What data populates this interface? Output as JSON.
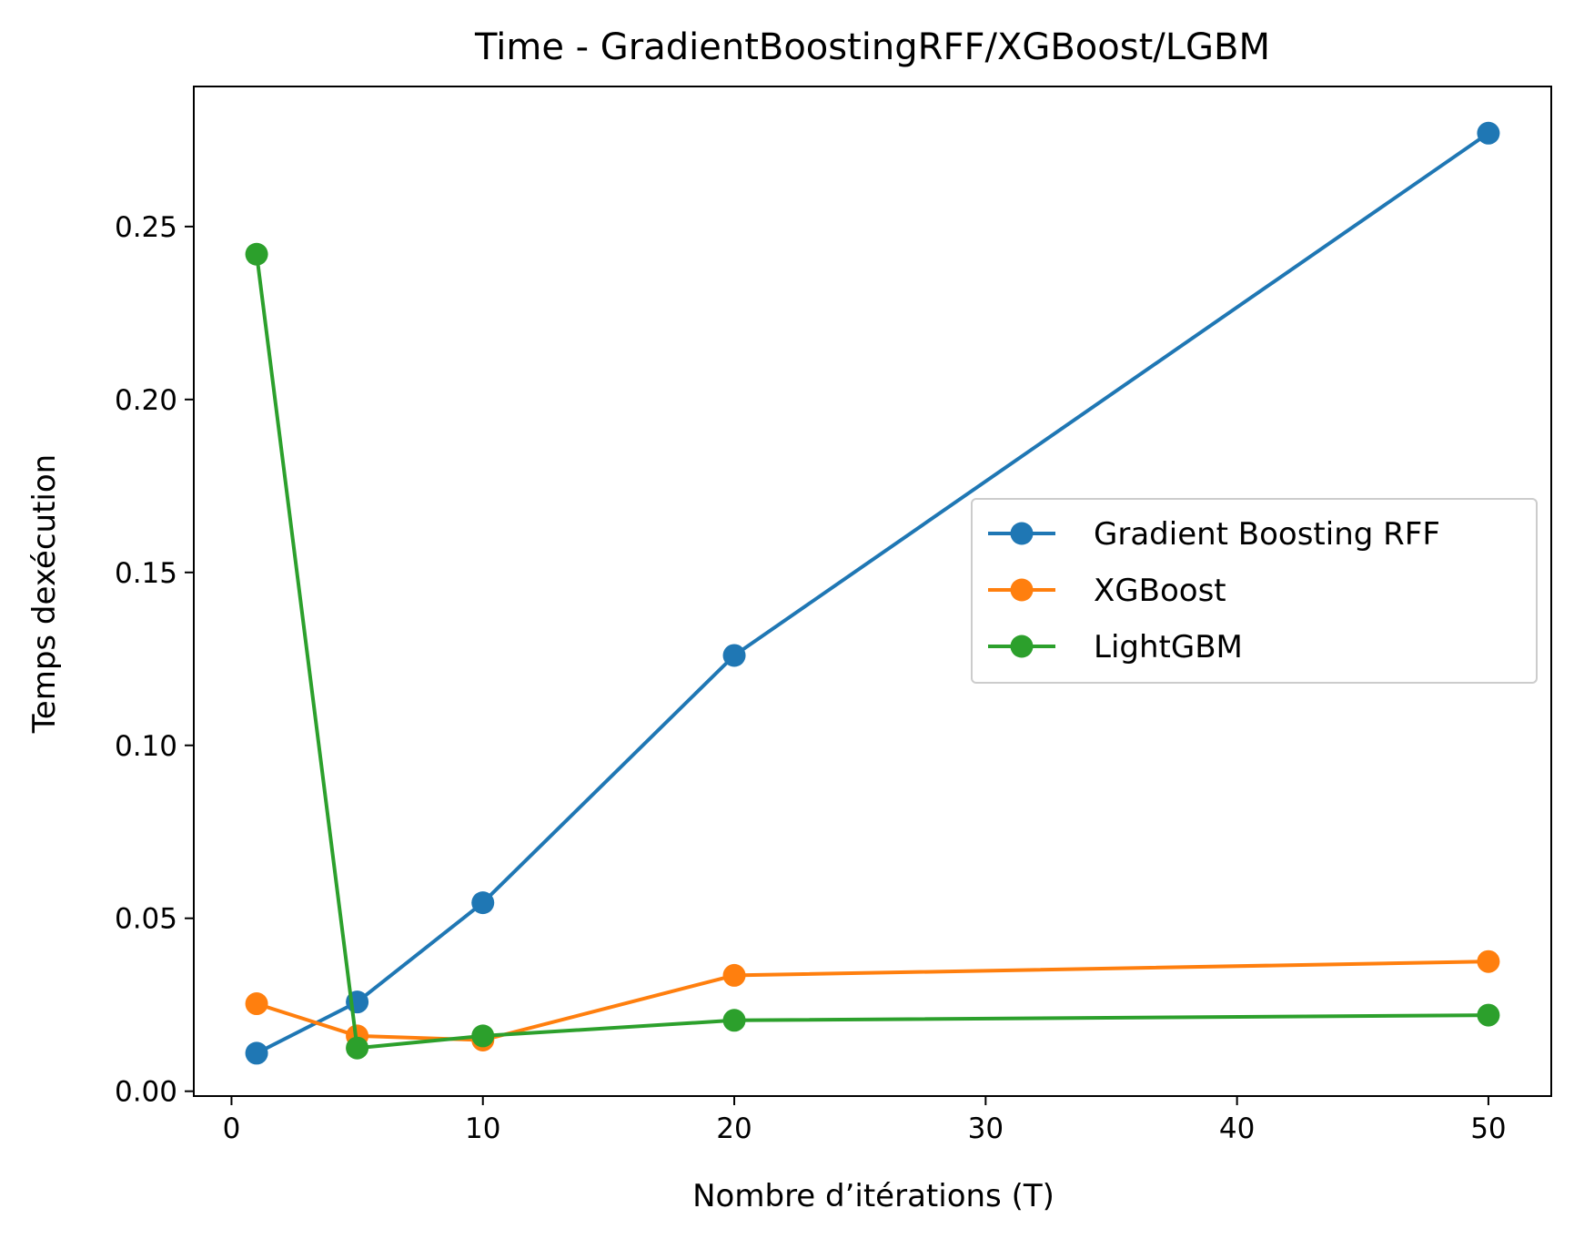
{
  "chart_data": {
    "type": "line",
    "title": "Time - GradientBoostingRFF/XGBoost/LGBM",
    "xlabel": "Nombre d’itérations (T)",
    "ylabel": "Temps dexécution",
    "xlim": [
      -1.5,
      52.5
    ],
    "ylim": [
      -0.0014,
      0.2905
    ],
    "x_ticks": [
      0,
      10,
      20,
      30,
      40,
      50
    ],
    "x_tick_labels": [
      "0",
      "10",
      "20",
      "30",
      "40",
      "50"
    ],
    "y_ticks": [
      0.0,
      0.05,
      0.1,
      0.15,
      0.2,
      0.25
    ],
    "y_tick_labels": [
      "0.00",
      "0.05",
      "0.10",
      "0.15",
      "0.20",
      "0.25"
    ],
    "grid": false,
    "legend_placement": "center-right",
    "x": [
      1,
      5,
      10,
      20,
      50
    ],
    "series": [
      {
        "name": "Gradient Boosting RFF",
        "color": "#1f77b4",
        "marker": "circle",
        "values": [
          0.011,
          0.0258,
          0.0545,
          0.126,
          0.277
        ]
      },
      {
        "name": "XGBoost",
        "color": "#ff7f0e",
        "marker": "circle",
        "values": [
          0.0253,
          0.016,
          0.0148,
          0.0335,
          0.0375
        ]
      },
      {
        "name": "LightGBM",
        "color": "#2ca02c",
        "marker": "circle",
        "values": [
          0.242,
          0.0125,
          0.016,
          0.0205,
          0.022
        ]
      }
    ]
  }
}
